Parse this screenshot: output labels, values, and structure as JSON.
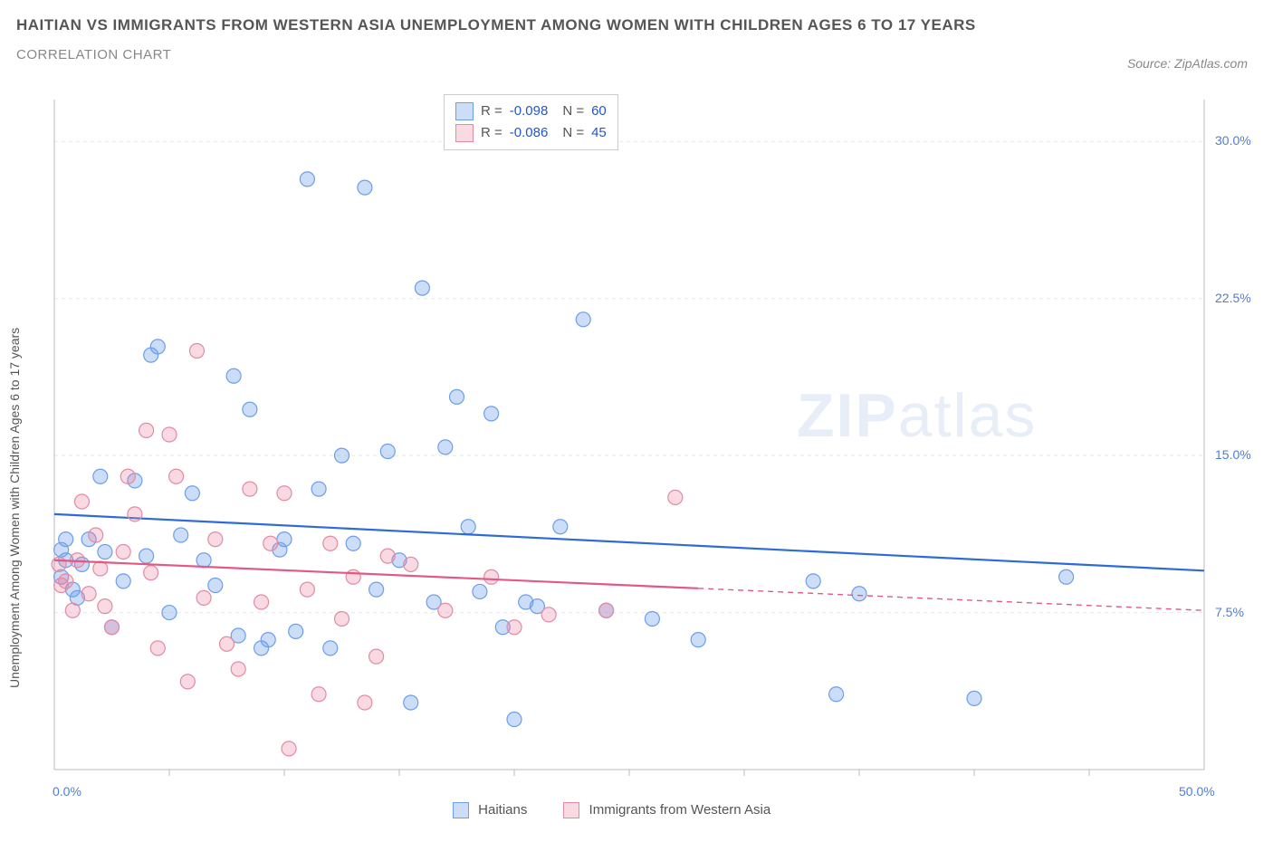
{
  "title_line1": "HAITIAN VS IMMIGRANTS FROM WESTERN ASIA UNEMPLOYMENT AMONG WOMEN WITH CHILDREN AGES 6 TO 17 YEARS",
  "title_line2": "CORRELATION CHART",
  "source_text": "Source: ZipAtlas.com",
  "y_axis_label": "Unemployment Among Women with Children Ages 6 to 17 years",
  "watermark_zip": "ZIP",
  "watermark_atlas": "atlas",
  "colors": {
    "series1_fill": "rgba(109,158,235,0.35)",
    "series1_stroke": "#6d9eeb",
    "series1_line": "#2e6bd6",
    "series2_fill": "rgba(235,130,160,0.30)",
    "series2_stroke": "#e38aa5",
    "series2_line": "#e05a85",
    "grid": "#e8e8e8",
    "axis": "#bbbbbb",
    "tick_label": "#4d7dd6",
    "text": "#555555"
  },
  "chart": {
    "type": "scatter",
    "xlim": [
      0,
      50
    ],
    "ylim": [
      0,
      32
    ],
    "x_ticks": [
      0,
      50
    ],
    "x_tick_labels": [
      "0.0%",
      "50.0%"
    ],
    "x_minor_ticks": [
      5,
      10,
      15,
      20,
      25,
      30,
      35,
      40,
      45
    ],
    "y_ticks": [
      7.5,
      15.0,
      22.5,
      30.0
    ],
    "y_tick_labels": [
      "7.5%",
      "15.0%",
      "22.5%",
      "30.0%"
    ],
    "background": "#ffffff",
    "grid_color": "#e8e8e8",
    "grid_dash": "4,4",
    "marker_radius": 8,
    "marker_stroke_width": 1.2,
    "line_width": 2.2
  },
  "series": [
    {
      "name": "Haitians",
      "color_fill": "rgba(109,158,235,0.35)",
      "color_stroke": "#6d9eeb",
      "trend_color": "#2e6bd6",
      "R": "-0.098",
      "N": "60",
      "trend": {
        "x1": 0,
        "y1": 12.2,
        "x2": 50,
        "y2": 9.5,
        "solid_until": 50
      },
      "points": [
        [
          0.3,
          10.5
        ],
        [
          0.3,
          9.2
        ],
        [
          0.5,
          11.0
        ],
        [
          0.5,
          10.0
        ],
        [
          0.8,
          8.6
        ],
        [
          1.0,
          8.2
        ],
        [
          1.2,
          9.8
        ],
        [
          1.5,
          11.0
        ],
        [
          2.0,
          14.0
        ],
        [
          2.2,
          10.4
        ],
        [
          2.5,
          6.8
        ],
        [
          3.0,
          9.0
        ],
        [
          3.5,
          13.8
        ],
        [
          4.0,
          10.2
        ],
        [
          4.2,
          19.8
        ],
        [
          4.5,
          20.2
        ],
        [
          5.0,
          7.5
        ],
        [
          5.5,
          11.2
        ],
        [
          6.0,
          13.2
        ],
        [
          6.5,
          10.0
        ],
        [
          7.0,
          8.8
        ],
        [
          7.8,
          18.8
        ],
        [
          8.0,
          6.4
        ],
        [
          8.5,
          17.2
        ],
        [
          9.0,
          5.8
        ],
        [
          9.3,
          6.2
        ],
        [
          9.8,
          10.5
        ],
        [
          10.0,
          11.0
        ],
        [
          10.5,
          6.6
        ],
        [
          11.0,
          28.2
        ],
        [
          11.5,
          13.4
        ],
        [
          12.0,
          5.8
        ],
        [
          12.5,
          15.0
        ],
        [
          13.0,
          10.8
        ],
        [
          13.5,
          27.8
        ],
        [
          14.0,
          8.6
        ],
        [
          14.5,
          15.2
        ],
        [
          15.0,
          10.0
        ],
        [
          15.5,
          3.2
        ],
        [
          16.0,
          23.0
        ],
        [
          16.5,
          8.0
        ],
        [
          17.0,
          15.4
        ],
        [
          17.5,
          17.8
        ],
        [
          18.0,
          11.6
        ],
        [
          18.5,
          8.5
        ],
        [
          19.0,
          17.0
        ],
        [
          19.5,
          6.8
        ],
        [
          20.0,
          2.4
        ],
        [
          20.5,
          8.0
        ],
        [
          21.0,
          7.8
        ],
        [
          22.0,
          11.6
        ],
        [
          23.0,
          21.5
        ],
        [
          24.0,
          7.6
        ],
        [
          26.0,
          7.2
        ],
        [
          28.0,
          6.2
        ],
        [
          33.0,
          9.0
        ],
        [
          34.0,
          3.6
        ],
        [
          35.0,
          8.4
        ],
        [
          40.0,
          3.4
        ],
        [
          44.0,
          9.2
        ]
      ]
    },
    {
      "name": "Immigrants from Western Asia",
      "color_fill": "rgba(235,130,160,0.30)",
      "color_stroke": "#e38aa5",
      "trend_color": "#e05a85",
      "R": "-0.086",
      "N": "45",
      "trend": {
        "x1": 0,
        "y1": 10.0,
        "x2": 50,
        "y2": 7.6,
        "solid_until": 28
      },
      "points": [
        [
          0.2,
          9.8
        ],
        [
          0.3,
          8.8
        ],
        [
          0.5,
          9.0
        ],
        [
          0.8,
          7.6
        ],
        [
          1.0,
          10.0
        ],
        [
          1.2,
          12.8
        ],
        [
          1.5,
          8.4
        ],
        [
          1.8,
          11.2
        ],
        [
          2.0,
          9.6
        ],
        [
          2.2,
          7.8
        ],
        [
          2.5,
          6.8
        ],
        [
          3.0,
          10.4
        ],
        [
          3.2,
          14.0
        ],
        [
          3.5,
          12.2
        ],
        [
          4.0,
          16.2
        ],
        [
          4.2,
          9.4
        ],
        [
          4.5,
          5.8
        ],
        [
          5.0,
          16.0
        ],
        [
          5.3,
          14.0
        ],
        [
          5.8,
          4.2
        ],
        [
          6.2,
          20.0
        ],
        [
          6.5,
          8.2
        ],
        [
          7.0,
          11.0
        ],
        [
          7.5,
          6.0
        ],
        [
          8.0,
          4.8
        ],
        [
          8.5,
          13.4
        ],
        [
          9.0,
          8.0
        ],
        [
          9.4,
          10.8
        ],
        [
          10.0,
          13.2
        ],
        [
          10.2,
          1.0
        ],
        [
          11.0,
          8.6
        ],
        [
          11.5,
          3.6
        ],
        [
          12.0,
          10.8
        ],
        [
          12.5,
          7.2
        ],
        [
          13.0,
          9.2
        ],
        [
          13.5,
          3.2
        ],
        [
          14.0,
          5.4
        ],
        [
          14.5,
          10.2
        ],
        [
          15.5,
          9.8
        ],
        [
          17.0,
          7.6
        ],
        [
          19.0,
          9.2
        ],
        [
          20.0,
          6.8
        ],
        [
          21.5,
          7.4
        ],
        [
          24.0,
          7.6
        ],
        [
          27.0,
          13.0
        ]
      ]
    }
  ],
  "stats_legend": {
    "rows": [
      {
        "R": "-0.098",
        "N": "60"
      },
      {
        "R": "-0.086",
        "N": "45"
      }
    ]
  },
  "bottom_legend": {
    "items": [
      "Haitians",
      "Immigrants from Western Asia"
    ]
  }
}
